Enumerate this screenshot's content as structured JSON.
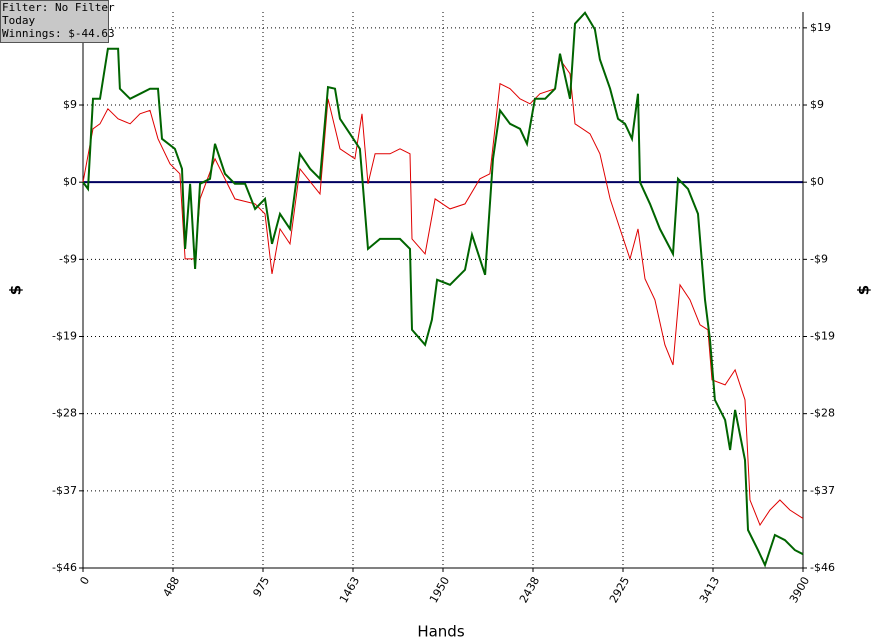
{
  "chart_data": {
    "type": "line",
    "annotations": [
      "Filter: No Filter",
      "Today",
      "Winnings: $-44.63"
    ],
    "x_label": "Hands",
    "y_label": "$",
    "y2_label": "$",
    "xlim": [
      0,
      3900
    ],
    "xticks": [
      0,
      {
        "value": 487.5,
        "label": "488"
      },
      975,
      {
        "value": 1462.5,
        "label": "1463"
      },
      1950,
      {
        "value": 2437.5,
        "label": "2438"
      },
      2925,
      {
        "value": 3412.5,
        "label": "3413"
      },
      3900
    ],
    "ylim": [
      -46.25,
      20.4
    ],
    "yticks": [
      {
        "value": -46.25,
        "label": "-$46"
      },
      {
        "value": -37,
        "label": "-$37"
      },
      {
        "value": -27.75,
        "label": "-$28"
      },
      {
        "value": -18.5,
        "label": "-$19"
      },
      {
        "value": -9.25,
        "label": "-$9"
      },
      {
        "value": 0,
        "label": "$0"
      },
      {
        "value": 9.25,
        "label": "$9"
      },
      {
        "value": 18.5,
        "label": "$19"
      }
    ],
    "grid": true,
    "series": [
      {
        "color": "#e00000",
        "x": [
          0,
          54,
          92,
          135,
          190,
          255,
          309,
          363,
          406,
          471,
          525,
          553,
          607,
          634,
          715,
          823,
          932,
          986,
          1024,
          1067,
          1121,
          1175,
          1284,
          1327,
          1392,
          1473,
          1511,
          1544,
          1582,
          1663,
          1717,
          1771,
          1782,
          1853,
          1907,
          1988,
          2069,
          2150,
          2204,
          2259,
          2313,
          2367,
          2421,
          2475,
          2557,
          2584,
          2638,
          2665,
          2746,
          2800,
          2855,
          2909,
          2963,
          3006,
          3044,
          3098,
          3152,
          3196,
          3234,
          3288,
          3342,
          3385,
          3407,
          3478,
          3532,
          3586,
          3613,
          3667,
          3721,
          3775,
          3829,
          3900
        ],
        "values": [
          0,
          6.4,
          7.0,
          8.8,
          7.6,
          7.0,
          8.2,
          8.6,
          5.2,
          2.2,
          1.0,
          -9.2,
          -9.2,
          -2.0,
          2.8,
          -2.0,
          -2.6,
          -3.8,
          -11.0,
          -5.6,
          -7.4,
          1.6,
          -1.4,
          10.0,
          4.0,
          2.8,
          8.2,
          -0.2,
          3.4,
          3.4,
          4.0,
          3.4,
          -6.8,
          -8.6,
          -2.0,
          -3.2,
          -2.6,
          0.4,
          1.0,
          11.8,
          11.2,
          10.0,
          9.4,
          10.6,
          11.2,
          14.7,
          13.0,
          7.0,
          5.8,
          3.4,
          -2.0,
          -5.6,
          -9.2,
          -5.6,
          -11.6,
          -14.1,
          -19.5,
          -21.9,
          -12.3,
          -14.1,
          -17.1,
          -17.7,
          -23.7,
          -24.3,
          -22.5,
          -26.1,
          -38.1,
          -41.1,
          -39.3,
          -38.1,
          -39.3,
          -40.3
        ]
      },
      {
        "color": "#006400",
        "x": [
          0,
          27,
          54,
          92,
          135,
          190,
          200,
          255,
          309,
          363,
          406,
          428,
          498,
          536,
          553,
          580,
          607,
          634,
          688,
          715,
          769,
          823,
          878,
          932,
          986,
          1024,
          1067,
          1121,
          1175,
          1230,
          1284,
          1327,
          1365,
          1392,
          1446,
          1500,
          1544,
          1609,
          1663,
          1717,
          1771,
          1782,
          1853,
          1890,
          1918,
          1988,
          2069,
          2107,
          2178,
          2221,
          2259,
          2313,
          2367,
          2405,
          2448,
          2503,
          2557,
          2584,
          2638,
          2665,
          2719,
          2773,
          2800,
          2855,
          2898,
          2936,
          2974,
          3006,
          3017,
          3071,
          3125,
          3196,
          3223,
          3277,
          3331,
          3369,
          3396,
          3423,
          3478,
          3505,
          3532,
          3586,
          3602,
          3656,
          3694,
          3748,
          3802,
          3856,
          3900
        ],
        "values": [
          0,
          -0.8,
          10.0,
          10.0,
          16.0,
          16.0,
          11.2,
          10.0,
          10.6,
          11.2,
          11.2,
          5.2,
          4.0,
          1.6,
          -8.0,
          -0.2,
          -10.4,
          -0.2,
          0.4,
          4.6,
          1.0,
          -0.2,
          -0.2,
          -3.2,
          -2.0,
          -7.4,
          -3.8,
          -5.6,
          3.4,
          1.6,
          0.4,
          11.4,
          11.2,
          7.6,
          5.8,
          4.0,
          -8.0,
          -6.8,
          -6.8,
          -6.8,
          -8.0,
          -17.7,
          -19.5,
          -16.5,
          -11.7,
          -12.3,
          -10.5,
          -6.3,
          -11.1,
          2.8,
          8.6,
          7.0,
          6.4,
          4.6,
          10.0,
          10.0,
          11.2,
          15.4,
          10.0,
          19.0,
          20.3,
          18.3,
          14.7,
          11.2,
          7.6,
          7.0,
          5.2,
          10.6,
          0,
          -2.6,
          -5.6,
          -8.6,
          0.4,
          -0.8,
          -3.8,
          -14.1,
          -18.9,
          -26.1,
          -28.5,
          -32.1,
          -27.3,
          -33.3,
          -41.7,
          -44.1,
          -45.9,
          -42.3,
          -42.9,
          -44.1,
          -44.6
        ]
      }
    ]
  }
}
